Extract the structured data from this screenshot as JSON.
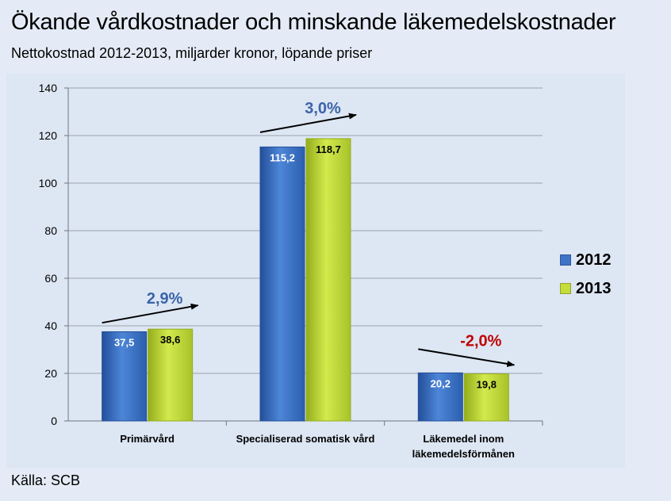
{
  "page": {
    "title": "Ökande vårdkostnader och minskande läkemedelskostnader",
    "subtitle": "Nettokostnad 2012-2013, miljarder kronor, löpande priser",
    "source": "Källa: SCB"
  },
  "colors": {
    "series_2012": "#3d74c8",
    "series_2012_dark": "#234f9a",
    "series_2013": "#c4dd3a",
    "series_2013_dark": "#93ad1c",
    "positive_change": "#3a64a8",
    "negative_change": "#c00000"
  },
  "chart_data": {
    "type": "bar",
    "categories": [
      "Primärvård",
      "Specialiserad somatisk vård",
      "Läkemedel inom läkemedelsförmånen"
    ],
    "category_lines": [
      [
        "Primärvård"
      ],
      [
        "Specialiserad somatisk vård"
      ],
      [
        "Läkemedel inom",
        "läkemedelsförmånen"
      ]
    ],
    "series": [
      {
        "name": "2012",
        "values": [
          37.5,
          115.2,
          20.2
        ],
        "labels": [
          "37,5",
          "115,2",
          "20,2"
        ]
      },
      {
        "name": "2013",
        "values": [
          38.6,
          118.7,
          19.8
        ],
        "labels": [
          "38,6",
          "118,7",
          "19,8"
        ]
      }
    ],
    "annotations": [
      {
        "category": 0,
        "text": "2,9%",
        "direction": "up"
      },
      {
        "category": 1,
        "text": "3,0%",
        "direction": "up"
      },
      {
        "category": 2,
        "text": "-2,0%",
        "direction": "down"
      }
    ],
    "ylim": [
      0,
      140
    ],
    "yticks": [
      0,
      20,
      40,
      60,
      80,
      100,
      120,
      140
    ],
    "grid": true,
    "legend_position": "right"
  }
}
